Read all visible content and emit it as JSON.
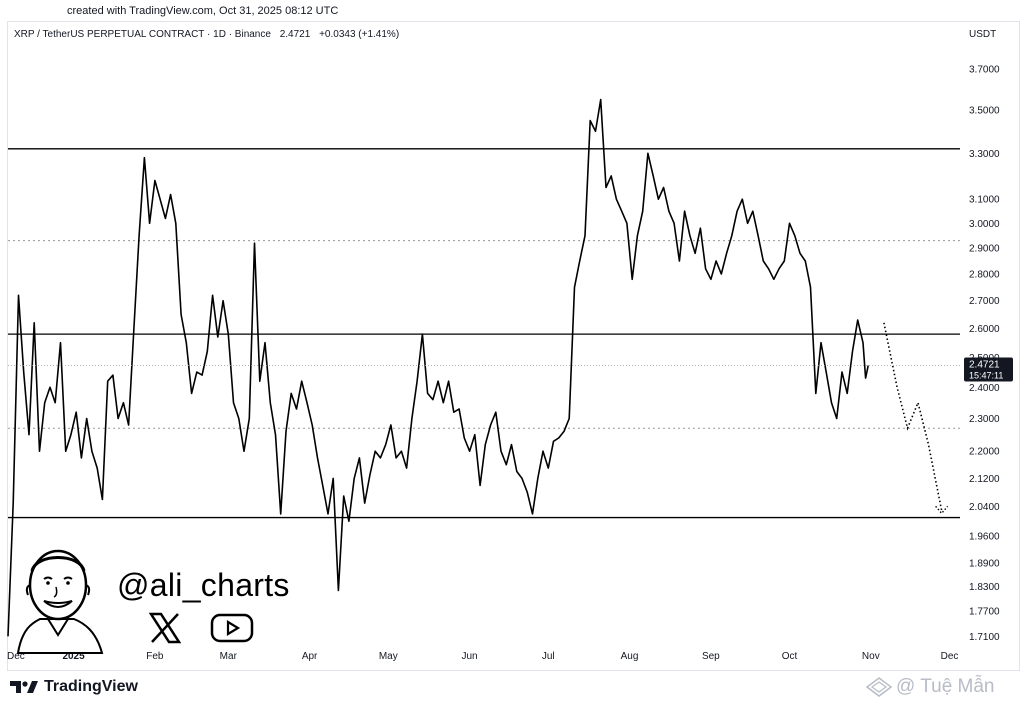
{
  "header": {
    "credit": "created with TradingView.com, Oct 31, 2025 08:12 UTC",
    "symbol": "XRP / TetherUS PERPETUAL CONTRACT · 1D · Binance",
    "price": "2.4721",
    "change": "+0.0343 (+1.41%)",
    "currency": "USDT"
  },
  "branding": {
    "logo_text": "TradingView",
    "handle": "@ali_charts",
    "watermark": "@ Tuệ Mẫn"
  },
  "colors": {
    "line": "#000000",
    "axis_text": "#131722",
    "price_tag": "#131722",
    "dotted": "#9598a1"
  },
  "chart_data": {
    "type": "line",
    "title": "",
    "xlabel": "",
    "ylabel": "",
    "y_ticks": [
      3.7,
      3.5,
      3.3,
      3.1,
      3.0,
      2.9,
      2.8,
      2.7,
      2.6,
      2.5,
      2.4,
      2.3,
      2.2,
      2.12,
      2.04,
      1.96,
      1.89,
      1.83,
      1.77,
      1.71
    ],
    "y_tick_labels": [
      "3.7000",
      "3.5000",
      "3.3000",
      "3.1000",
      "3.0000",
      "2.9000",
      "2.8000",
      "2.7000",
      "2.6000",
      "2.5000",
      "2.4000",
      "2.3000",
      "2.2000",
      "2.1200",
      "2.0400",
      "1.9600",
      "1.8900",
      "1.8300",
      "1.7700",
      "1.7100"
    ],
    "y_scale": "log",
    "ylim": [
      1.69,
      3.85
    ],
    "x_range": [
      "2024-12-07",
      "2025-12-05"
    ],
    "x_ticks": [
      {
        "date": "2024-12-10",
        "label": "Dec",
        "bold": false
      },
      {
        "date": "2025-01-01",
        "label": "2025",
        "bold": true
      },
      {
        "date": "2025-02-01",
        "label": "Feb",
        "bold": false
      },
      {
        "date": "2025-03-01",
        "label": "Mar",
        "bold": false
      },
      {
        "date": "2025-04-01",
        "label": "Apr",
        "bold": false
      },
      {
        "date": "2025-05-01",
        "label": "May",
        "bold": false
      },
      {
        "date": "2025-06-01",
        "label": "Jun",
        "bold": false
      },
      {
        "date": "2025-07-01",
        "label": "Jul",
        "bold": false
      },
      {
        "date": "2025-08-01",
        "label": "Aug",
        "bold": false
      },
      {
        "date": "2025-09-01",
        "label": "Sep",
        "bold": false
      },
      {
        "date": "2025-10-01",
        "label": "Oct",
        "bold": false
      },
      {
        "date": "2025-11-01",
        "label": "Nov",
        "bold": false
      },
      {
        "date": "2025-12-01",
        "label": "Dec",
        "bold": false
      }
    ],
    "series": [
      {
        "color": "#000000",
        "points": [
          [
            "2024-12-07",
            1.71
          ],
          [
            "2024-12-09",
            2.05
          ],
          [
            "2024-12-11",
            2.72
          ],
          [
            "2024-12-13",
            2.45
          ],
          [
            "2024-12-15",
            2.25
          ],
          [
            "2024-12-17",
            2.62
          ],
          [
            "2024-12-19",
            2.2
          ],
          [
            "2024-12-21",
            2.35
          ],
          [
            "2024-12-23",
            2.4
          ],
          [
            "2024-12-25",
            2.35
          ],
          [
            "2024-12-27",
            2.55
          ],
          [
            "2024-12-29",
            2.2
          ],
          [
            "2024-12-31",
            2.25
          ],
          [
            "2025-01-02",
            2.32
          ],
          [
            "2025-01-04",
            2.18
          ],
          [
            "2025-01-06",
            2.3
          ],
          [
            "2025-01-08",
            2.2
          ],
          [
            "2025-01-10",
            2.15
          ],
          [
            "2025-01-12",
            2.06
          ],
          [
            "2025-01-14",
            2.42
          ],
          [
            "2025-01-16",
            2.44
          ],
          [
            "2025-01-18",
            2.3
          ],
          [
            "2025-01-20",
            2.35
          ],
          [
            "2025-01-22",
            2.28
          ],
          [
            "2025-01-24",
            2.6
          ],
          [
            "2025-01-26",
            2.95
          ],
          [
            "2025-01-28",
            3.28
          ],
          [
            "2025-01-30",
            3.0
          ],
          [
            "2025-02-01",
            3.18
          ],
          [
            "2025-02-03",
            3.1
          ],
          [
            "2025-02-05",
            3.02
          ],
          [
            "2025-02-07",
            3.12
          ],
          [
            "2025-02-09",
            3.0
          ],
          [
            "2025-02-11",
            2.65
          ],
          [
            "2025-02-13",
            2.55
          ],
          [
            "2025-02-15",
            2.38
          ],
          [
            "2025-02-17",
            2.45
          ],
          [
            "2025-02-19",
            2.44
          ],
          [
            "2025-02-21",
            2.52
          ],
          [
            "2025-02-23",
            2.72
          ],
          [
            "2025-02-25",
            2.57
          ],
          [
            "2025-02-27",
            2.7
          ],
          [
            "2025-03-01",
            2.58
          ],
          [
            "2025-03-03",
            2.35
          ],
          [
            "2025-03-05",
            2.3
          ],
          [
            "2025-03-07",
            2.2
          ],
          [
            "2025-03-09",
            2.3
          ],
          [
            "2025-03-11",
            2.92
          ],
          [
            "2025-03-13",
            2.42
          ],
          [
            "2025-03-15",
            2.55
          ],
          [
            "2025-03-17",
            2.35
          ],
          [
            "2025-03-19",
            2.25
          ],
          [
            "2025-03-21",
            2.02
          ],
          [
            "2025-03-23",
            2.26
          ],
          [
            "2025-03-25",
            2.38
          ],
          [
            "2025-03-27",
            2.33
          ],
          [
            "2025-03-29",
            2.42
          ],
          [
            "2025-03-31",
            2.35
          ],
          [
            "2025-04-02",
            2.28
          ],
          [
            "2025-04-04",
            2.18
          ],
          [
            "2025-04-06",
            2.1
          ],
          [
            "2025-04-08",
            2.02
          ],
          [
            "2025-04-10",
            2.12
          ],
          [
            "2025-04-12",
            1.82
          ],
          [
            "2025-04-14",
            2.07
          ],
          [
            "2025-04-16",
            2.0
          ],
          [
            "2025-04-18",
            2.12
          ],
          [
            "2025-04-20",
            2.18
          ],
          [
            "2025-04-22",
            2.05
          ],
          [
            "2025-04-24",
            2.13
          ],
          [
            "2025-04-26",
            2.2
          ],
          [
            "2025-04-28",
            2.18
          ],
          [
            "2025-04-30",
            2.22
          ],
          [
            "2025-05-02",
            2.28
          ],
          [
            "2025-05-04",
            2.18
          ],
          [
            "2025-05-06",
            2.2
          ],
          [
            "2025-05-08",
            2.15
          ],
          [
            "2025-05-10",
            2.3
          ],
          [
            "2025-05-12",
            2.42
          ],
          [
            "2025-05-14",
            2.58
          ],
          [
            "2025-05-16",
            2.38
          ],
          [
            "2025-05-18",
            2.36
          ],
          [
            "2025-05-20",
            2.42
          ],
          [
            "2025-05-22",
            2.35
          ],
          [
            "2025-05-24",
            2.42
          ],
          [
            "2025-05-26",
            2.32
          ],
          [
            "2025-05-28",
            2.33
          ],
          [
            "2025-05-30",
            2.24
          ],
          [
            "2025-06-01",
            2.2
          ],
          [
            "2025-06-03",
            2.25
          ],
          [
            "2025-06-05",
            2.1
          ],
          [
            "2025-06-07",
            2.22
          ],
          [
            "2025-06-09",
            2.28
          ],
          [
            "2025-06-11",
            2.32
          ],
          [
            "2025-06-13",
            2.2
          ],
          [
            "2025-06-15",
            2.16
          ],
          [
            "2025-06-17",
            2.22
          ],
          [
            "2025-06-19",
            2.14
          ],
          [
            "2025-06-21",
            2.12
          ],
          [
            "2025-06-23",
            2.08
          ],
          [
            "2025-06-25",
            2.02
          ],
          [
            "2025-06-27",
            2.12
          ],
          [
            "2025-06-29",
            2.2
          ],
          [
            "2025-07-01",
            2.15
          ],
          [
            "2025-07-03",
            2.23
          ],
          [
            "2025-07-05",
            2.24
          ],
          [
            "2025-07-07",
            2.26
          ],
          [
            "2025-07-09",
            2.3
          ],
          [
            "2025-07-11",
            2.75
          ],
          [
            "2025-07-13",
            2.85
          ],
          [
            "2025-07-15",
            2.95
          ],
          [
            "2025-07-17",
            3.45
          ],
          [
            "2025-07-19",
            3.4
          ],
          [
            "2025-07-21",
            3.55
          ],
          [
            "2025-07-23",
            3.15
          ],
          [
            "2025-07-25",
            3.2
          ],
          [
            "2025-07-27",
            3.1
          ],
          [
            "2025-07-29",
            3.05
          ],
          [
            "2025-07-31",
            3.0
          ],
          [
            "2025-08-02",
            2.78
          ],
          [
            "2025-08-04",
            2.95
          ],
          [
            "2025-08-06",
            3.05
          ],
          [
            "2025-08-08",
            3.3
          ],
          [
            "2025-08-10",
            3.2
          ],
          [
            "2025-08-12",
            3.1
          ],
          [
            "2025-08-14",
            3.15
          ],
          [
            "2025-08-16",
            3.05
          ],
          [
            "2025-08-18",
            3.0
          ],
          [
            "2025-08-20",
            2.85
          ],
          [
            "2025-08-22",
            3.05
          ],
          [
            "2025-08-24",
            2.95
          ],
          [
            "2025-08-26",
            2.88
          ],
          [
            "2025-08-28",
            2.98
          ],
          [
            "2025-08-30",
            2.82
          ],
          [
            "2025-09-01",
            2.78
          ],
          [
            "2025-09-03",
            2.85
          ],
          [
            "2025-09-05",
            2.8
          ],
          [
            "2025-09-07",
            2.88
          ],
          [
            "2025-09-09",
            2.95
          ],
          [
            "2025-09-11",
            3.05
          ],
          [
            "2025-09-13",
            3.1
          ],
          [
            "2025-09-15",
            3.0
          ],
          [
            "2025-09-17",
            3.05
          ],
          [
            "2025-09-19",
            2.95
          ],
          [
            "2025-09-21",
            2.85
          ],
          [
            "2025-09-23",
            2.82
          ],
          [
            "2025-09-25",
            2.78
          ],
          [
            "2025-09-27",
            2.82
          ],
          [
            "2025-09-29",
            2.85
          ],
          [
            "2025-10-01",
            3.0
          ],
          [
            "2025-10-03",
            2.95
          ],
          [
            "2025-10-05",
            2.88
          ],
          [
            "2025-10-07",
            2.85
          ],
          [
            "2025-10-09",
            2.75
          ],
          [
            "2025-10-11",
            2.38
          ],
          [
            "2025-10-13",
            2.55
          ],
          [
            "2025-10-15",
            2.45
          ],
          [
            "2025-10-17",
            2.35
          ],
          [
            "2025-10-19",
            2.3
          ],
          [
            "2025-10-21",
            2.45
          ],
          [
            "2025-10-23",
            2.38
          ],
          [
            "2025-10-25",
            2.52
          ],
          [
            "2025-10-27",
            2.63
          ],
          [
            "2025-10-29",
            2.55
          ],
          [
            "2025-10-30",
            2.43
          ],
          [
            "2025-10-31",
            2.4721
          ]
        ]
      }
    ],
    "projection": [
      [
        "2025-11-06",
        2.62
      ],
      [
        "2025-11-11",
        2.4
      ],
      [
        "2025-11-15",
        2.27
      ],
      [
        "2025-11-19",
        2.35
      ],
      [
        "2025-11-23",
        2.22
      ],
      [
        "2025-11-28",
        2.03
      ]
    ],
    "horizontal_lines": [
      {
        "value": 3.32,
        "style": "solid"
      },
      {
        "value": 2.93,
        "style": "dotted"
      },
      {
        "value": 2.58,
        "style": "solid"
      },
      {
        "value": 2.27,
        "style": "dotted"
      },
      {
        "value": 2.01,
        "style": "solid"
      }
    ],
    "last_price": {
      "value": 2.4721,
      "label": "2.4721",
      "countdown": "15:47:11"
    },
    "grid": false,
    "legend": "none"
  }
}
